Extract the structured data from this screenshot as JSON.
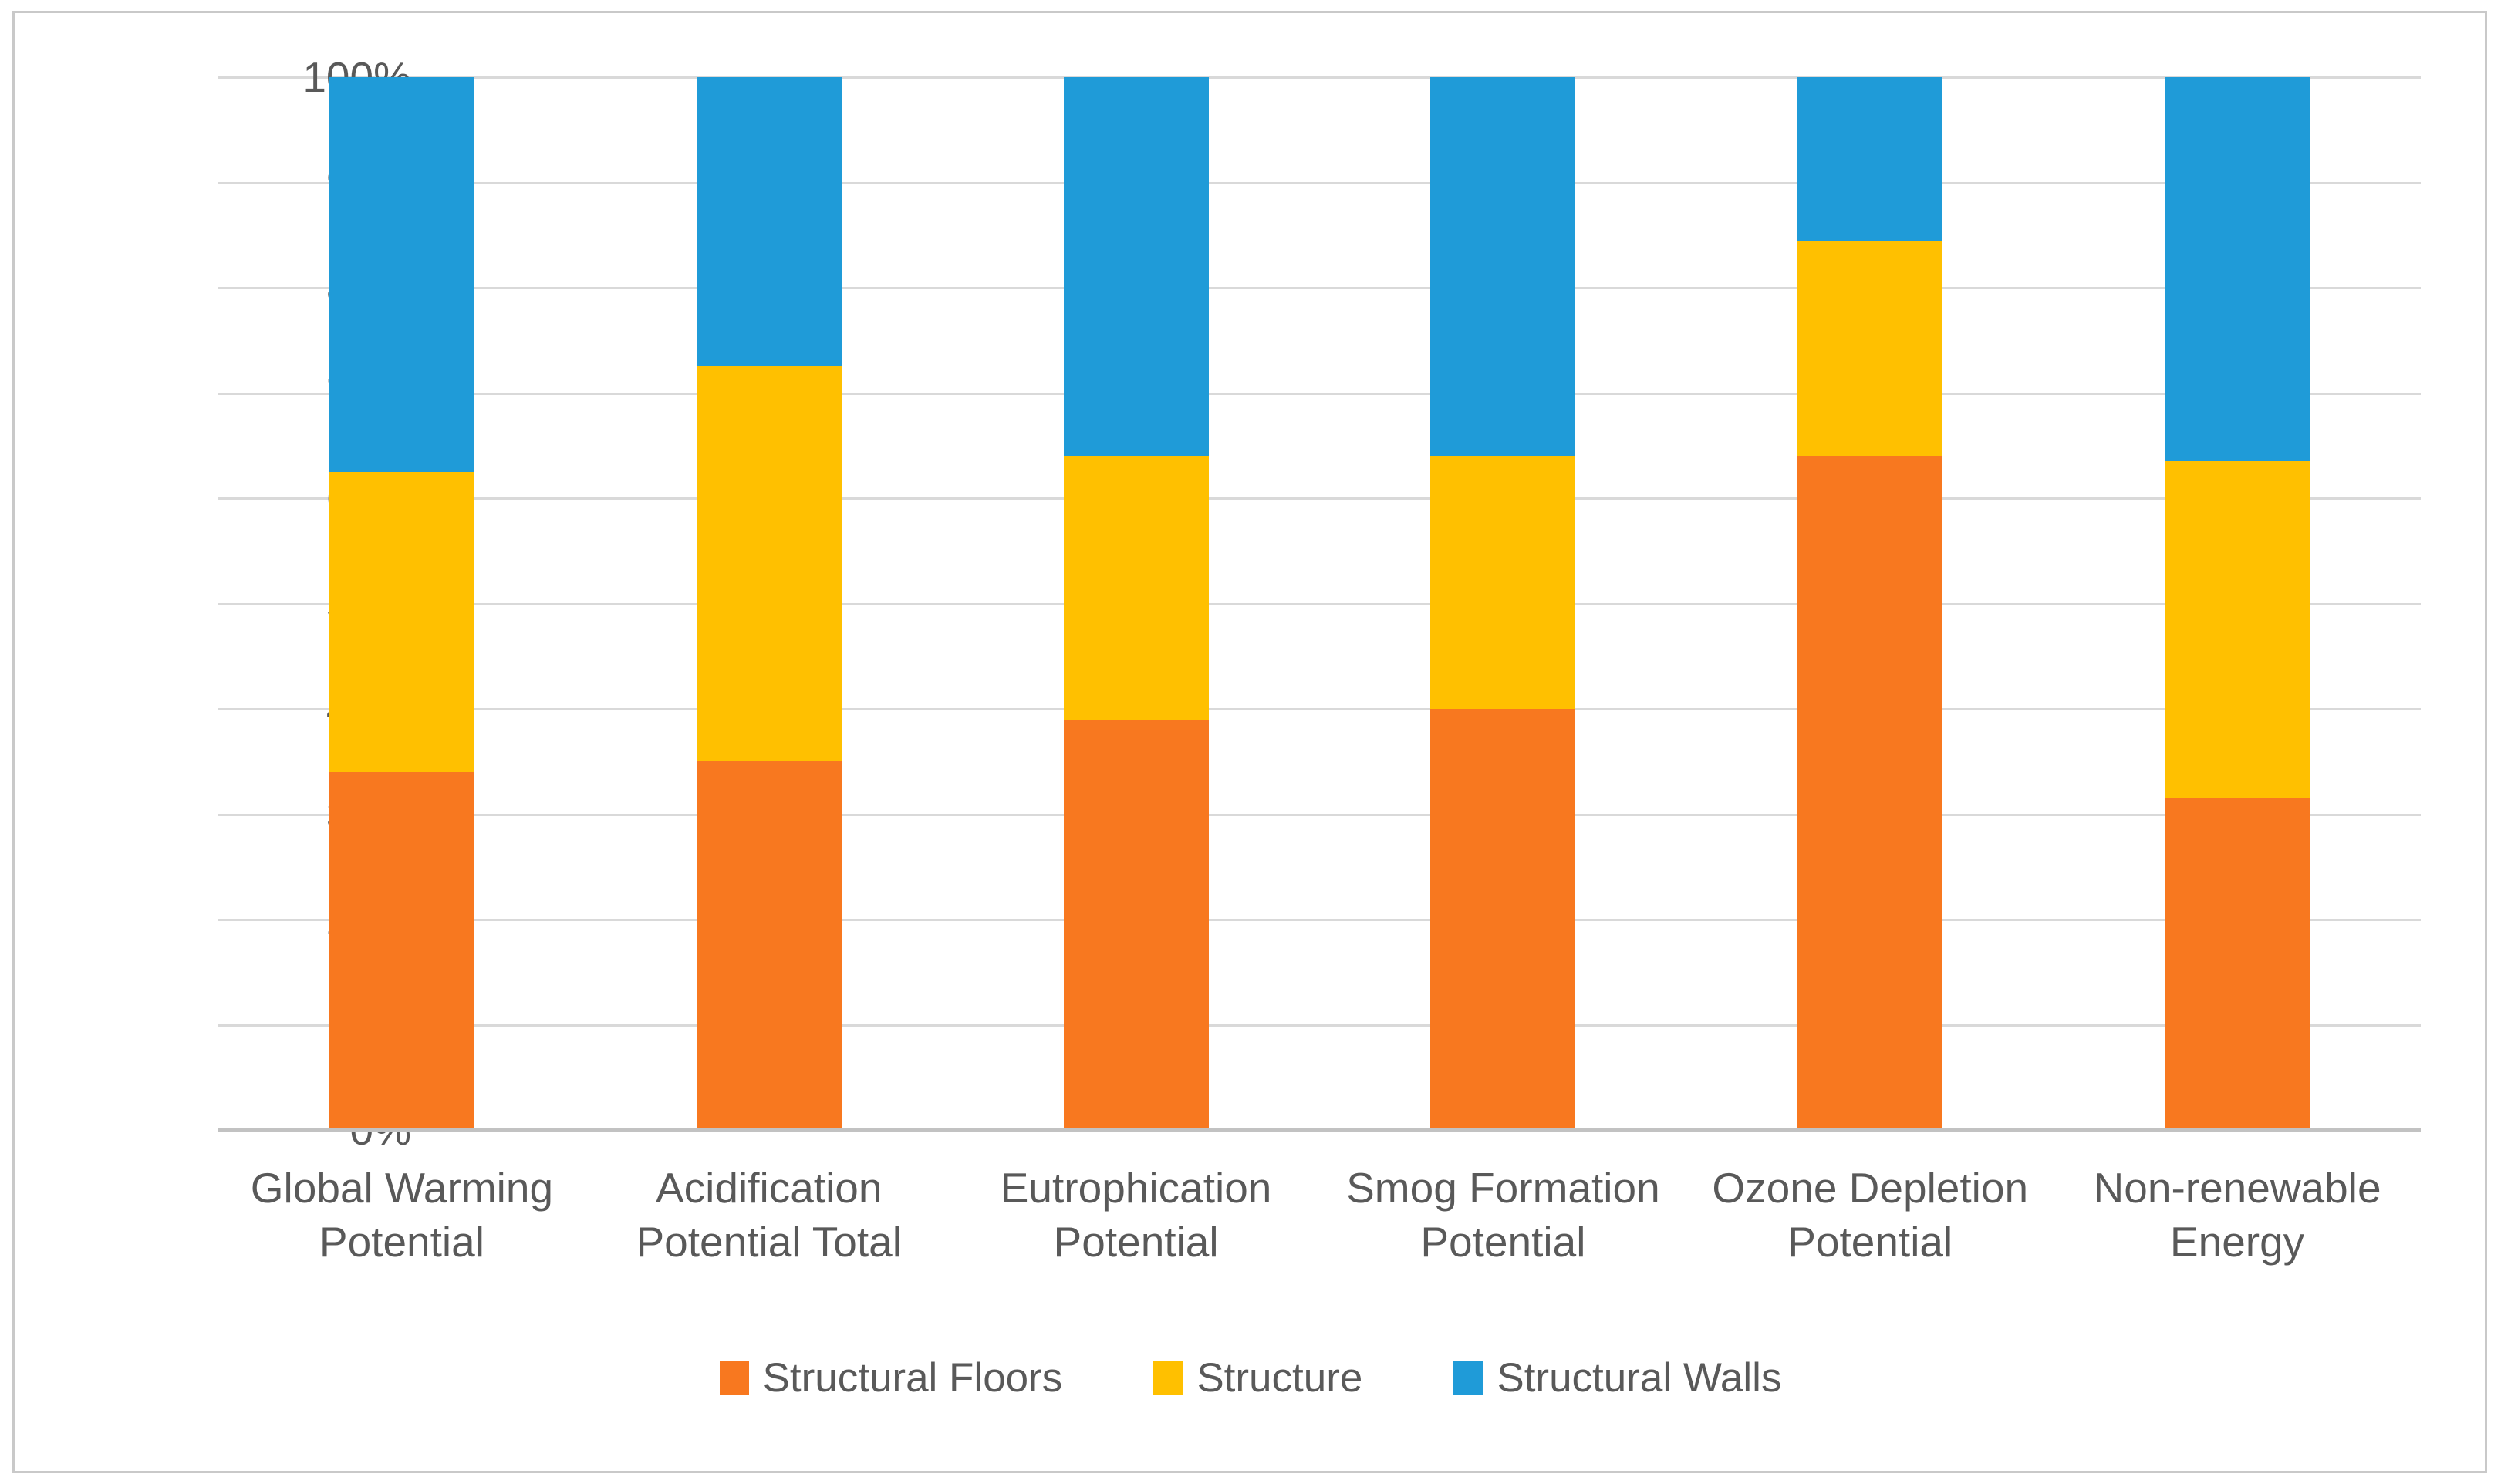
{
  "figure": {
    "background": "#ffffff",
    "border_color": "#c9c9c9"
  },
  "chart_data": {
    "type": "bar",
    "subtype": "stacked-100-percent",
    "title": "",
    "xlabel": "",
    "ylabel": "",
    "ylim": [
      0,
      100
    ],
    "grid": true,
    "legend_position": "bottom",
    "categories": [
      "Global Warming Potential",
      "Acidification Potential Total",
      "Eutrophication Potential",
      "Smog Formation Potential",
      "Ozone Depletion Potential",
      "Non-renewable Energy"
    ],
    "series": [
      {
        "name": "Structural Floors",
        "color": "#f8781f",
        "values": [
          34,
          35,
          39,
          40,
          64,
          31.5
        ]
      },
      {
        "name": "Structure",
        "color": "#ffc000",
        "values": [
          28.5,
          37.5,
          25,
          24,
          20.5,
          32
        ]
      },
      {
        "name": "Structural Walls",
        "color": "#1f9bd8",
        "values": [
          37.5,
          27.5,
          36,
          36,
          15.5,
          36.5
        ]
      }
    ],
    "y_ticks": [
      "100%",
      "90%",
      "80%",
      "70%",
      "60%",
      "50%",
      "40%",
      "30%",
      "20%",
      "10%",
      "0%"
    ],
    "style_colors": {
      "gridline": "#d9d9d9",
      "axis_line": "#c2c2c2",
      "text": "#595959"
    }
  }
}
